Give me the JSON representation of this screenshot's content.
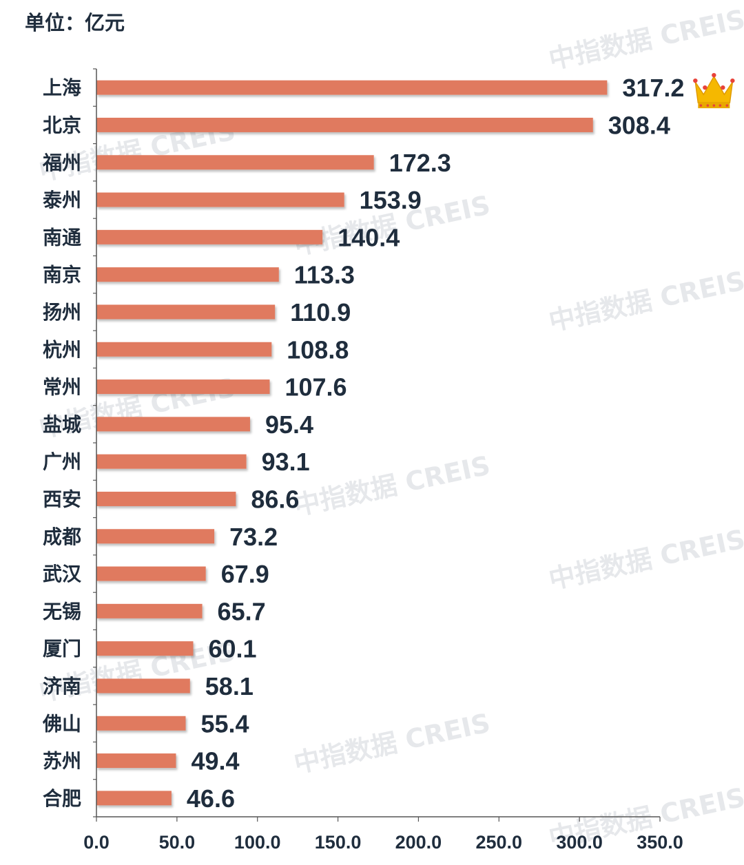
{
  "unit_label": "单位：亿元",
  "watermark": "中指数据 CREIS",
  "crown_icon": "crown-icon",
  "colors": {
    "bar": "#e07a5f",
    "axis": "#555555",
    "text": "#1f2d3d",
    "crown": "#f5b800"
  },
  "chart_data": {
    "type": "bar",
    "orientation": "horizontal",
    "categories": [
      "上海",
      "北京",
      "福州",
      "泰州",
      "南通",
      "南京",
      "扬州",
      "杭州",
      "常州",
      "盐城",
      "广州",
      "西安",
      "成都",
      "武汉",
      "无锡",
      "厦门",
      "济南",
      "佛山",
      "苏州",
      "合肥"
    ],
    "values": [
      317.2,
      308.4,
      172.3,
      153.9,
      140.4,
      113.3,
      110.9,
      108.8,
      107.6,
      95.4,
      93.1,
      86.6,
      73.2,
      67.9,
      65.7,
      60.1,
      58.1,
      55.4,
      49.4,
      46.6
    ],
    "value_labels": [
      "317.2",
      "308.4",
      "172.3",
      "153.9",
      "140.4",
      "113.3",
      "110.9",
      "108.8",
      "107.6",
      "95.4",
      "93.1",
      "86.6",
      "73.2",
      "67.9",
      "65.7",
      "60.1",
      "58.1",
      "55.4",
      "49.4",
      "46.6"
    ],
    "xlim": [
      0,
      350
    ],
    "xticks": [
      "0.0",
      "50.0",
      "100.0",
      "150.0",
      "200.0",
      "250.0",
      "300.0",
      "350.0"
    ],
    "xtick_values": [
      0,
      50,
      100,
      150,
      200,
      250,
      300,
      350
    ],
    "grid": false,
    "legend": "none"
  }
}
